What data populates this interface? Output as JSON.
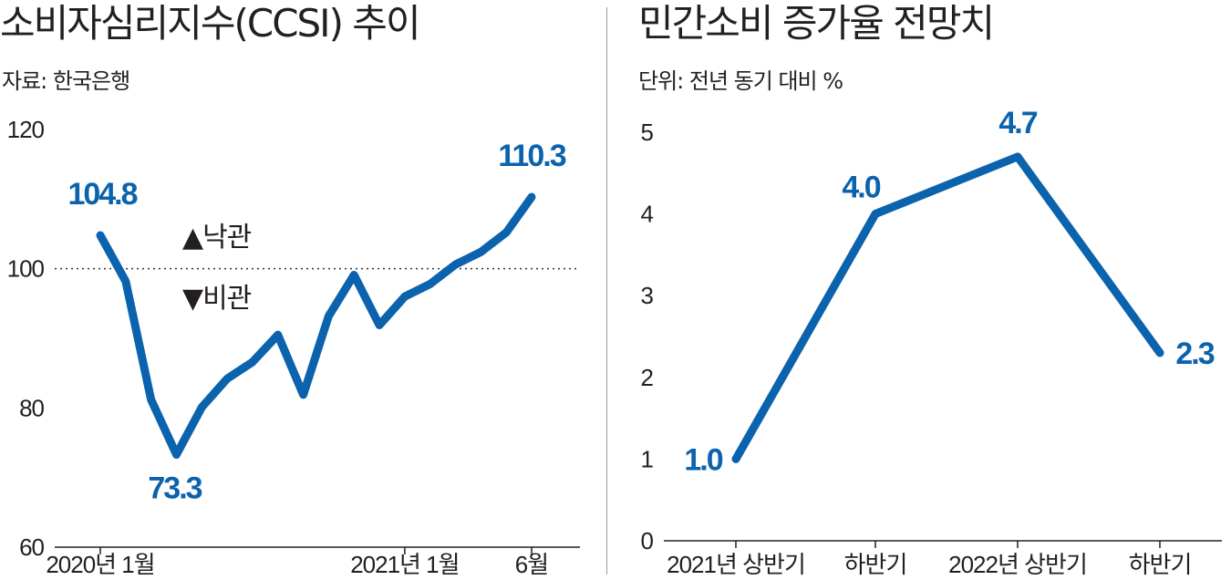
{
  "colors": {
    "line": "#0b62ad",
    "text": "#231f20",
    "axis": "#231f20",
    "divider": "#9a9a9a"
  },
  "left_panel": {
    "title": "소비자심리지수(CCSI) 추이",
    "source": "자료: 한국은행",
    "annotation_up": "▲낙관",
    "annotation_down": "▼비관"
  },
  "right_panel": {
    "title": "민간소비 증가율 전망치",
    "unit": "단위: 전년 동기 대비 %"
  },
  "chart_data": [
    {
      "type": "line",
      "title": "소비자심리지수(CCSI) 추이",
      "source": "자료: 한국은행",
      "ylim": [
        60,
        120
      ],
      "yticks": [
        60,
        80,
        100,
        120
      ],
      "x": [
        1,
        2,
        3,
        4,
        5,
        6,
        7,
        8,
        9,
        10,
        11,
        12,
        13,
        14,
        15,
        16,
        17,
        18
      ],
      "xtick_labels": [
        {
          "x": 1,
          "label": "2020년 1월"
        },
        {
          "x": 13,
          "label": "2021년 1월"
        },
        {
          "x": 18,
          "label": "6월"
        }
      ],
      "values": [
        104.8,
        98.2,
        81.2,
        73.3,
        80.1,
        84.2,
        86.6,
        90.5,
        81.9,
        93.2,
        99.1,
        91.9,
        96.0,
        97.8,
        100.6,
        102.4,
        105.2,
        110.3
      ],
      "reference_line": 100,
      "data_labels": [
        {
          "index": 0,
          "label": "104.8"
        },
        {
          "index": 3,
          "label": "73.3"
        },
        {
          "index": 17,
          "label": "110.3"
        }
      ]
    },
    {
      "type": "line",
      "title": "민간소비 증가율 전망치",
      "unit": "단위: 전년 동기 대비 %",
      "ylim": [
        0,
        5
      ],
      "yticks": [
        0,
        1,
        2,
        3,
        4,
        5
      ],
      "categories": [
        "2021년 상반기",
        "하반기",
        "2022년 상반기",
        "하반기"
      ],
      "values": [
        1.0,
        4.0,
        4.7,
        2.3
      ],
      "data_labels": [
        "1.0",
        "4.0",
        "4.7",
        "2.3"
      ]
    }
  ]
}
